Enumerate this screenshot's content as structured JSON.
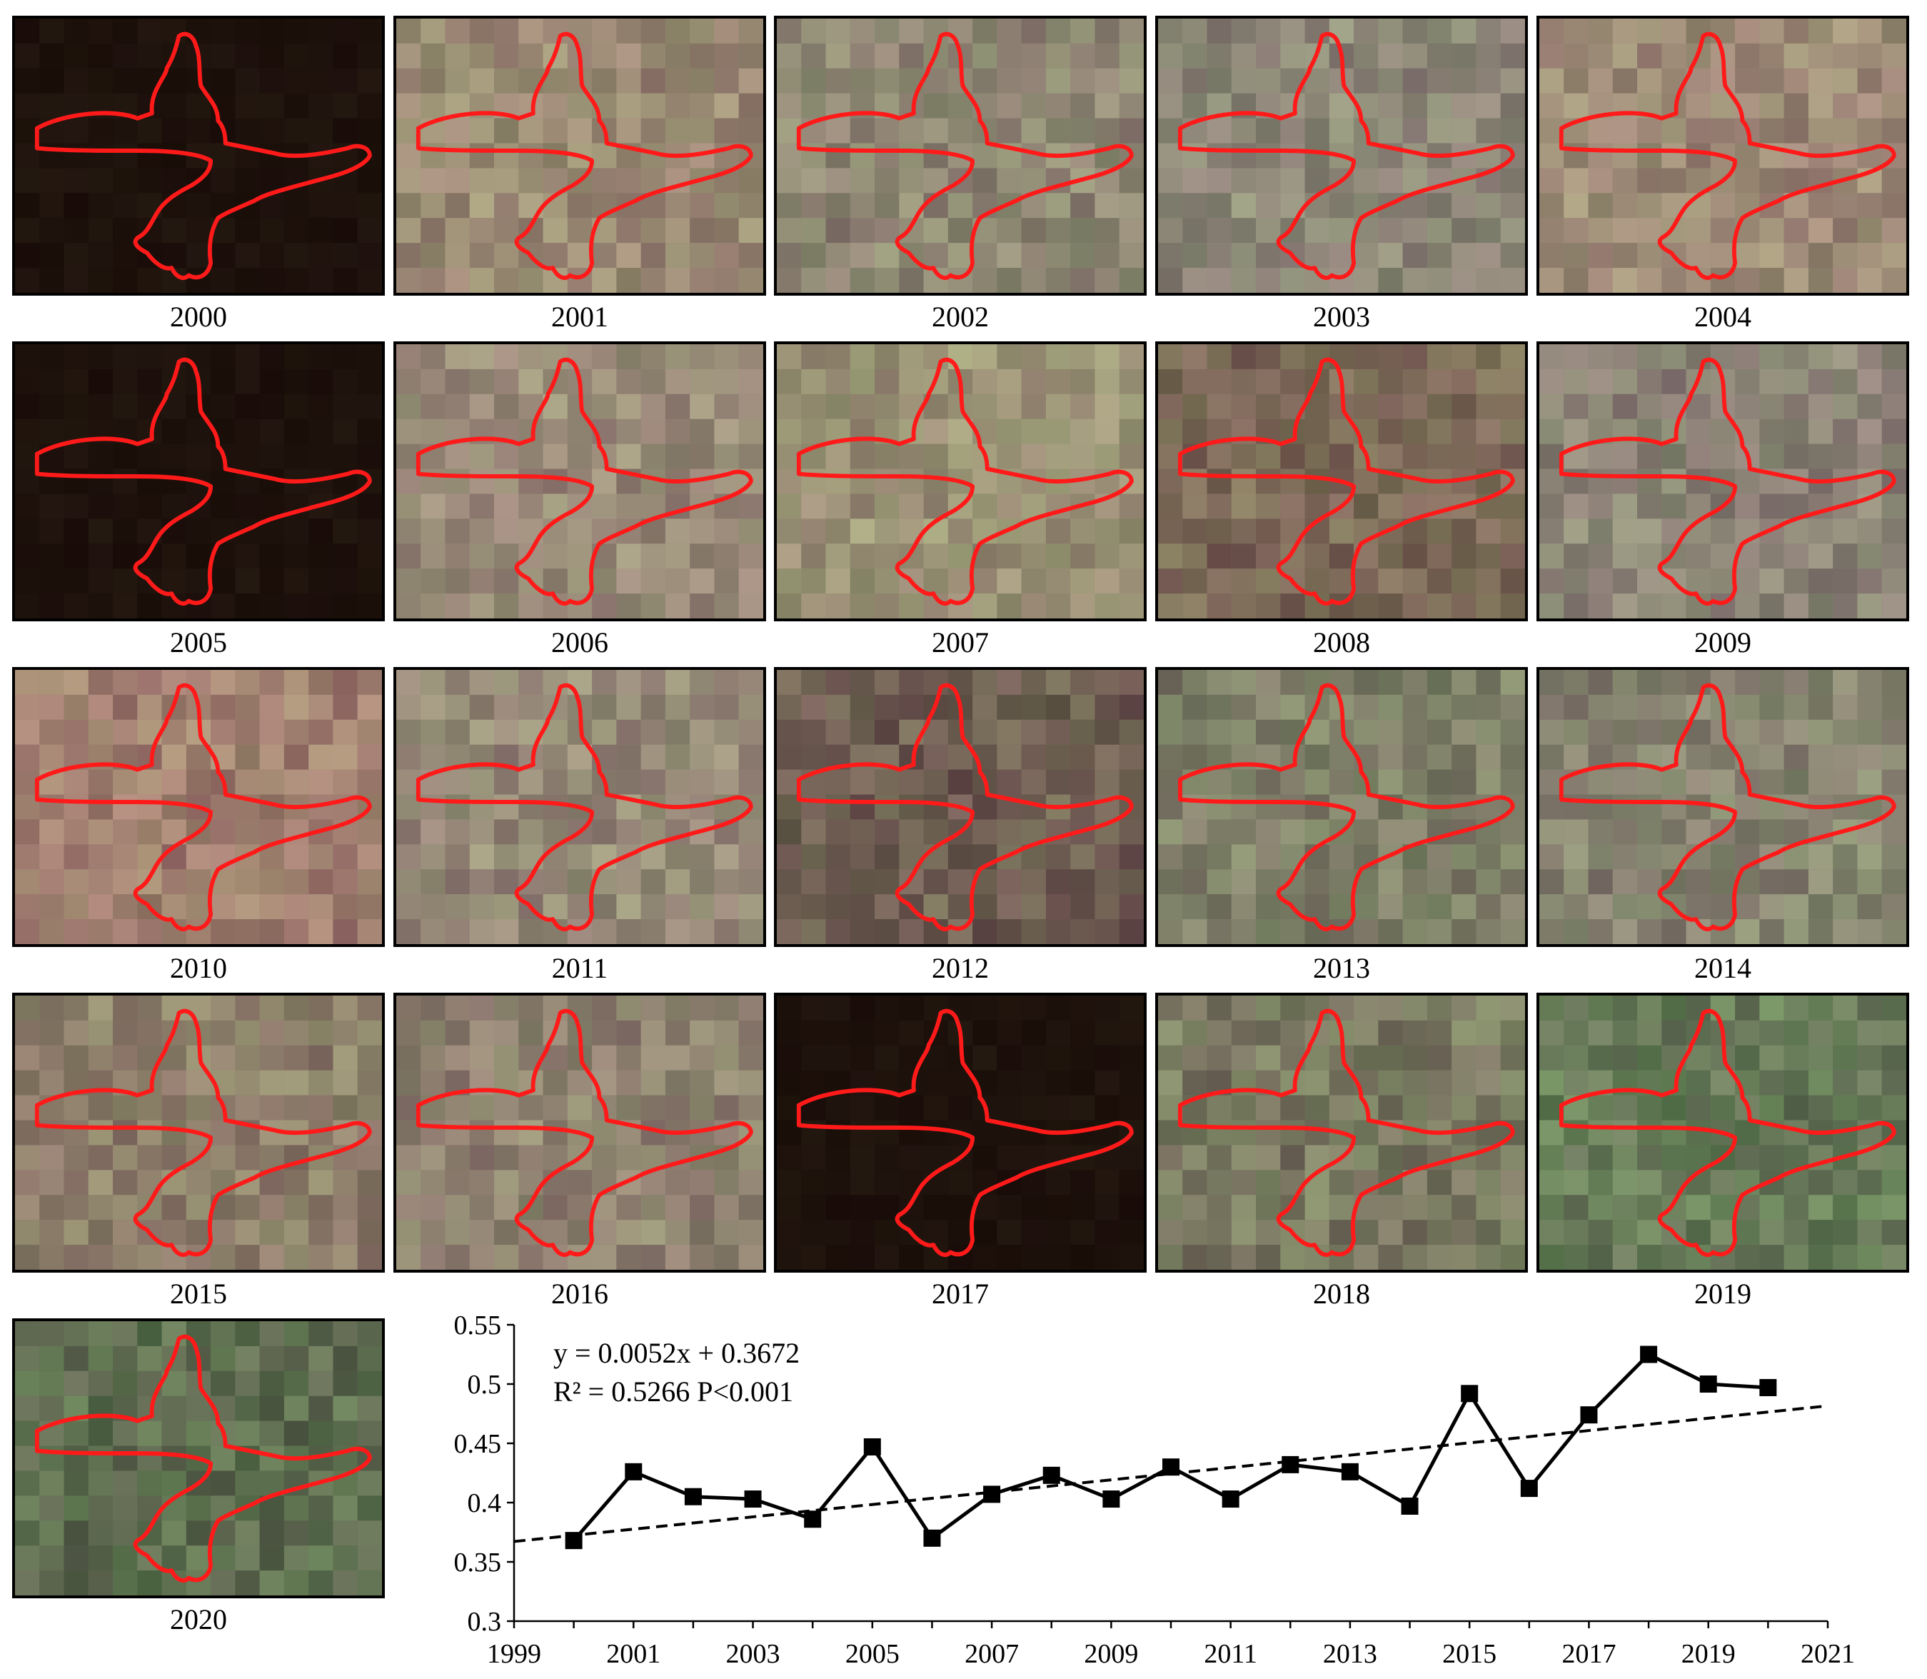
{
  "tiles": [
    {
      "label": "2000",
      "dark": true
    },
    {
      "label": "2001",
      "tint": "#9a8a74"
    },
    {
      "label": "2002",
      "tint": "#8f8874"
    },
    {
      "label": "2003",
      "tint": "#8c8677"
    },
    {
      "label": "2004",
      "tint": "#9c8a76"
    },
    {
      "label": "2005",
      "dark": true
    },
    {
      "label": "2006",
      "tint": "#988a78"
    },
    {
      "label": "2007",
      "tint": "#9a9276"
    },
    {
      "label": "2008",
      "tint": "#7c6a58"
    },
    {
      "label": "2009",
      "tint": "#8b8476"
    },
    {
      "label": "2010",
      "tint": "#a08070"
    },
    {
      "label": "2011",
      "tint": "#968a78"
    },
    {
      "label": "2012",
      "tint": "#6e5e52"
    },
    {
      "label": "2013",
      "tint": "#7e8068"
    },
    {
      "label": "2014",
      "tint": "#868470"
    },
    {
      "label": "2015",
      "tint": "#8c7e6a"
    },
    {
      "label": "2016",
      "tint": "#8e8270"
    },
    {
      "label": "2017",
      "dark": true
    },
    {
      "label": "2018",
      "tint": "#7a7a62"
    },
    {
      "label": "2019",
      "tint": "#667a58"
    },
    {
      "label": "2020",
      "tint": "#5e6e50"
    }
  ],
  "colors": {
    "outline": "#ff1a1a",
    "line": "#000000",
    "dark_tile": "#1e120c"
  },
  "chart_data": {
    "type": "line",
    "x": [
      2000,
      2001,
      2002,
      2003,
      2004,
      2005,
      2006,
      2007,
      2008,
      2009,
      2010,
      2011,
      2012,
      2013,
      2014,
      2015,
      2016,
      2017,
      2018,
      2019,
      2020
    ],
    "series": [
      {
        "values": [
          0.368,
          0.426,
          0.405,
          0.403,
          0.386,
          0.447,
          0.37,
          0.407,
          0.423,
          0.403,
          0.43,
          0.403,
          0.432,
          0.426,
          0.397,
          0.492,
          0.412,
          0.474,
          0.525,
          0.5,
          0.497
        ],
        "marker": "square"
      }
    ],
    "trendline": {
      "slope": 0.0052,
      "intercept": 0.3672,
      "x_origin": 1999,
      "style": "dashed"
    },
    "annotations": [
      "y = 0.0052x + 0.3672",
      "R² = 0.5266  P<0.001"
    ],
    "xlim": [
      1999,
      2021
    ],
    "ylim": [
      0.3,
      0.55
    ],
    "xticks": [
      "1999",
      "2001",
      "2003",
      "2005",
      "2007",
      "2009",
      "2011",
      "2013",
      "2015",
      "2017",
      "2019",
      "2021"
    ],
    "yticks": [
      "0.3",
      "0.35",
      "0.4",
      "0.45",
      "0.5",
      "0.55"
    ],
    "grid": false,
    "xlabel": "",
    "ylabel": ""
  }
}
